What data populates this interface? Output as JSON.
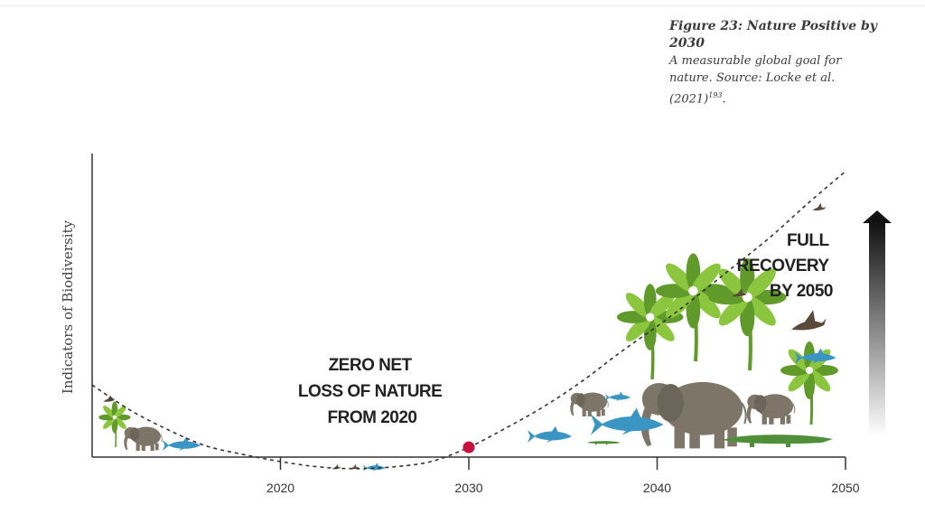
{
  "caption": {
    "title": "Figure 23: Nature Positive by 2030",
    "subtitle": "A measurable global goal for nature. Source: Locke et al. (2021)",
    "ref": "193",
    "end": "."
  },
  "chart_data": {
    "type": "line",
    "title": "",
    "xlabel": "",
    "ylabel": "Indicators of Biodiversity",
    "xlim": [
      2010,
      2050
    ],
    "ylim": [
      -1,
      16
    ],
    "x_ticks": [
      "2020",
      "2030",
      "2040",
      "2050"
    ],
    "grid": false,
    "series": [
      {
        "style": "dashed",
        "x": [
          2010,
          2012,
          2014,
          2016,
          2018,
          2020,
          2022,
          2024,
          2026,
          2028,
          2030,
          2032,
          2034,
          2036,
          2038,
          2040,
          2042,
          2044,
          2046,
          2048,
          2050
        ],
        "y": [
          4.0,
          2.6,
          1.5,
          0.6,
          0.1,
          -0.3,
          -0.6,
          -0.7,
          -0.6,
          -0.3,
          0.5,
          1.6,
          2.8,
          4.2,
          5.8,
          7.3,
          8.9,
          10.6,
          12.3,
          14.2,
          16.0
        ]
      }
    ],
    "markers": [
      {
        "x": 2030,
        "y": 0.5,
        "color": "#c8103e"
      }
    ],
    "annotations": [
      {
        "lines": [
          "ZERO NET",
          "LOSS OF NATURE",
          "FROM 2020"
        ]
      },
      {
        "lines": [
          "FULL",
          "RECOVERY",
          "BY 2050"
        ]
      }
    ],
    "arrow": {
      "direction": "up",
      "gradient": [
        "#111111",
        "#ffffff"
      ]
    }
  },
  "colors": {
    "elephant": "#7d7568",
    "fish": "#3a95c2",
    "leaf": "#8cc63f",
    "leaf_dark": "#5f9a2a",
    "croc": "#4f8f3a",
    "bird": "#5a4a3a",
    "axis": "#333333",
    "curve": "#333333"
  }
}
